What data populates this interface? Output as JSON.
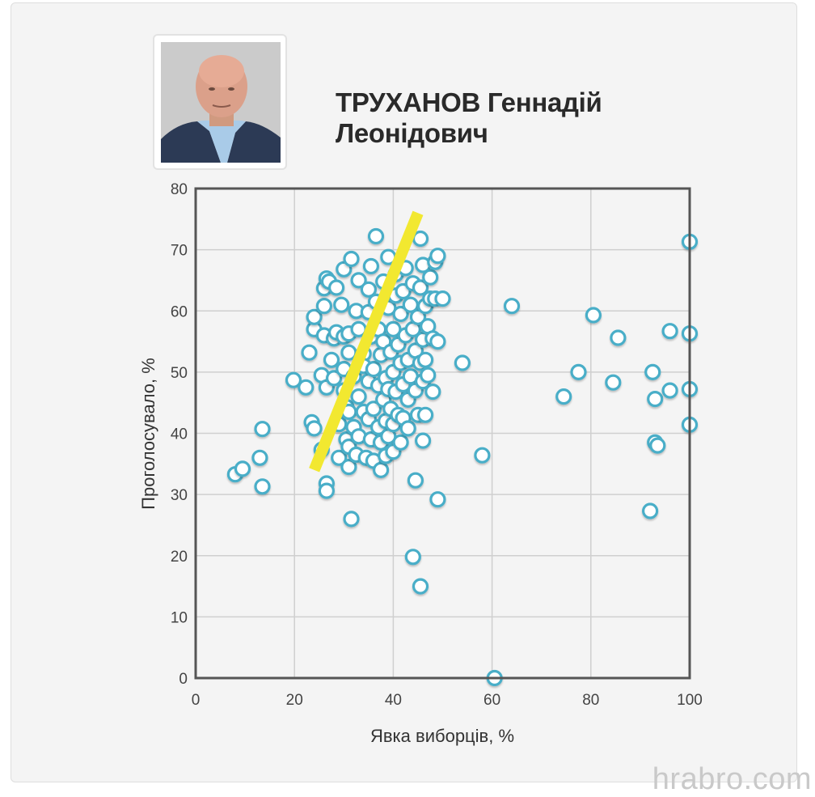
{
  "profile": {
    "name_line1": "ТРУХАНОВ Геннадій",
    "name_line2": "Леонідович",
    "photo_alt": "portrait"
  },
  "watermark": "hrabro.com",
  "colors": {
    "point_stroke": "#4aaec8",
    "point_fill": "#ffffff",
    "trend_line": "#f2e830",
    "axis": "#555555",
    "grid": "#cfcfcf",
    "background": "#f4f4f4"
  },
  "chart_data": {
    "type": "scatter",
    "title": "ТРУХАНОВ Геннадій Леонідович",
    "xlabel": "Явка виборців, %",
    "ylabel": "Проголосувало, %",
    "xlim": [
      0,
      100
    ],
    "ylim": [
      0,
      80
    ],
    "xticks": [
      0,
      20,
      40,
      60,
      80,
      100
    ],
    "yticks": [
      0,
      10,
      20,
      30,
      40,
      50,
      60,
      70,
      80
    ],
    "grid": true,
    "legend": null,
    "trend_line": {
      "x": [
        24,
        45
      ],
      "y": [
        34,
        76
      ]
    },
    "points": [
      [
        8,
        33.3
      ],
      [
        9.5,
        34.2
      ],
      [
        13,
        36
      ],
      [
        13.5,
        40.7
      ],
      [
        13.5,
        31.3
      ],
      [
        19.8,
        48.7
      ],
      [
        22.3,
        47.5
      ],
      [
        23,
        53.2
      ],
      [
        23.5,
        41.8
      ],
      [
        24,
        40.8
      ],
      [
        24,
        57
      ],
      [
        24,
        59
      ],
      [
        25.5,
        49.5
      ],
      [
        25.5,
        37.3
      ],
      [
        26,
        56
      ],
      [
        26,
        60.8
      ],
      [
        26,
        63.7
      ],
      [
        26.5,
        65.3
      ],
      [
        26.5,
        47.5
      ],
      [
        26.5,
        31.8
      ],
      [
        26.5,
        30.6
      ],
      [
        27,
        64.8
      ],
      [
        27.5,
        52
      ],
      [
        28,
        55.5
      ],
      [
        28,
        49
      ],
      [
        28.5,
        63.8
      ],
      [
        28.5,
        56.5
      ],
      [
        29,
        41.5
      ],
      [
        29,
        36
      ],
      [
        29.5,
        61
      ],
      [
        30,
        66.8
      ],
      [
        30,
        55.8
      ],
      [
        30,
        50.5
      ],
      [
        30,
        47
      ],
      [
        30.5,
        44.3
      ],
      [
        30.5,
        39
      ],
      [
        31,
        53.2
      ],
      [
        31,
        43.5
      ],
      [
        31,
        37.8
      ],
      [
        31,
        34.5
      ],
      [
        31.5,
        68.5
      ],
      [
        31,
        56.3
      ],
      [
        31.5,
        26
      ],
      [
        32,
        49.3
      ],
      [
        32,
        41
      ],
      [
        32.5,
        60
      ],
      [
        32.5,
        36.5
      ],
      [
        33,
        65
      ],
      [
        33,
        57
      ],
      [
        33,
        46
      ],
      [
        33,
        39.5
      ],
      [
        34,
        53
      ],
      [
        34,
        51
      ],
      [
        34,
        43.5
      ],
      [
        34.5,
        36
      ],
      [
        35,
        63.5
      ],
      [
        35,
        59.8
      ],
      [
        35,
        48.5
      ],
      [
        35,
        42.3
      ],
      [
        35.5,
        67.3
      ],
      [
        35.5,
        55.8
      ],
      [
        35.5,
        39
      ],
      [
        36,
        50.5
      ],
      [
        36,
        44
      ],
      [
        36,
        35.5
      ],
      [
        36.5,
        72.2
      ],
      [
        36.5,
        61.5
      ],
      [
        37,
        57
      ],
      [
        37,
        47.8
      ],
      [
        37,
        41
      ],
      [
        37.5,
        52.8
      ],
      [
        37.5,
        38.5
      ],
      [
        37.5,
        34
      ],
      [
        38,
        64.8
      ],
      [
        38,
        55
      ],
      [
        38,
        45.5
      ],
      [
        38.5,
        49
      ],
      [
        38.5,
        42
      ],
      [
        38.5,
        36.3
      ],
      [
        39,
        68.8
      ],
      [
        39,
        60.5
      ],
      [
        39,
        47.2
      ],
      [
        39,
        39.5
      ],
      [
        39.5,
        53.3
      ],
      [
        39.5,
        44
      ],
      [
        40,
        57
      ],
      [
        40,
        50
      ],
      [
        40,
        41.5
      ],
      [
        40,
        37
      ],
      [
        40.5,
        66
      ],
      [
        40.5,
        62.5
      ],
      [
        40.5,
        46.8
      ],
      [
        41,
        54.5
      ],
      [
        41,
        43
      ],
      [
        41.5,
        59.5
      ],
      [
        41.5,
        51.5
      ],
      [
        41.5,
        38.5
      ],
      [
        42,
        63.2
      ],
      [
        42,
        48
      ],
      [
        42,
        42.5
      ],
      [
        42.5,
        67
      ],
      [
        42.5,
        56
      ],
      [
        43,
        52
      ],
      [
        43,
        45.5
      ],
      [
        43,
        40.8
      ],
      [
        43.5,
        61
      ],
      [
        43.5,
        49.3
      ],
      [
        44,
        64.5
      ],
      [
        44,
        57
      ],
      [
        44,
        19.8
      ],
      [
        44.5,
        53.5
      ],
      [
        44.5,
        47
      ],
      [
        44.5,
        32.3
      ],
      [
        45,
        59
      ],
      [
        45,
        43
      ],
      [
        45.5,
        71.8
      ],
      [
        45.5,
        63.8
      ],
      [
        45.5,
        51.5
      ],
      [
        45.5,
        15
      ],
      [
        46,
        67.5
      ],
      [
        46,
        55.3
      ],
      [
        46,
        48.5
      ],
      [
        46,
        38.8
      ],
      [
        46.5,
        60.8
      ],
      [
        46.5,
        52
      ],
      [
        46.5,
        43
      ],
      [
        47,
        57.5
      ],
      [
        47,
        49.5
      ],
      [
        47.5,
        65.5
      ],
      [
        47.5,
        62
      ],
      [
        48,
        55.5
      ],
      [
        48,
        46.8
      ],
      [
        48.5,
        68
      ],
      [
        48.5,
        62
      ],
      [
        49,
        69
      ],
      [
        49,
        55
      ],
      [
        49,
        29.2
      ],
      [
        50,
        62
      ],
      [
        54,
        51.5
      ],
      [
        58,
        36.4
      ],
      [
        60.5,
        0
      ],
      [
        64,
        60.8
      ],
      [
        74.5,
        46
      ],
      [
        77.5,
        50
      ],
      [
        80.5,
        59.3
      ],
      [
        84.5,
        48.3
      ],
      [
        85.5,
        55.6
      ],
      [
        92,
        27.3
      ],
      [
        92.5,
        50
      ],
      [
        93,
        38.5
      ],
      [
        93,
        45.6
      ],
      [
        93.5,
        38
      ],
      [
        96,
        56.7
      ],
      [
        96,
        47
      ],
      [
        100,
        71.3
      ],
      [
        100,
        56.3
      ],
      [
        100,
        47.2
      ],
      [
        100,
        41.4
      ]
    ]
  }
}
